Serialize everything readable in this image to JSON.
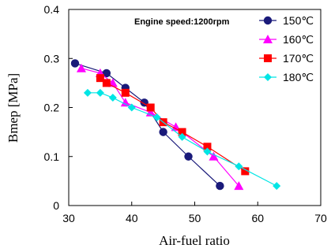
{
  "chart_data": {
    "type": "line",
    "annotation": "Engine speed:1200rpm",
    "xlabel": "Air-fuel ratio",
    "ylabel": "Bmep [MPa]",
    "xlim": [
      30,
      70
    ],
    "ylim": [
      0,
      0.4
    ],
    "x_ticks": [
      "30",
      "40",
      "50",
      "60",
      "70"
    ],
    "y_ticks": [
      "0",
      "0.1",
      "0.2",
      "0.3",
      "0.4"
    ],
    "legend_position": "top-right",
    "grid": false,
    "series": [
      {
        "name": "150℃",
        "color": "#1a1a7a",
        "marker": "circle",
        "points": [
          [
            31,
            0.29
          ],
          [
            36,
            0.27
          ],
          [
            39,
            0.24
          ],
          [
            42,
            0.21
          ],
          [
            45,
            0.15
          ],
          [
            49,
            0.1
          ],
          [
            54,
            0.04
          ]
        ]
      },
      {
        "name": "160℃",
        "color": "#ff00ff",
        "marker": "triangle",
        "points": [
          [
            32,
            0.28
          ],
          [
            35,
            0.27
          ],
          [
            37,
            0.25
          ],
          [
            39,
            0.21
          ],
          [
            43,
            0.19
          ],
          [
            47,
            0.16
          ],
          [
            53,
            0.1
          ],
          [
            57,
            0.04
          ]
        ]
      },
      {
        "name": "170℃",
        "color": "#ff0000",
        "marker": "square",
        "points": [
          [
            35,
            0.26
          ],
          [
            36,
            0.25
          ],
          [
            39,
            0.23
          ],
          [
            43,
            0.2
          ],
          [
            45,
            0.17
          ],
          [
            48,
            0.15
          ],
          [
            52,
            0.12
          ],
          [
            58,
            0.07
          ]
        ]
      },
      {
        "name": "180℃",
        "color": "#00e5e5",
        "marker": "diamond",
        "points": [
          [
            33,
            0.23
          ],
          [
            35,
            0.23
          ],
          [
            37,
            0.22
          ],
          [
            40,
            0.2
          ],
          [
            44,
            0.18
          ],
          [
            48,
            0.14
          ],
          [
            52,
            0.11
          ],
          [
            57,
            0.08
          ],
          [
            63,
            0.04
          ]
        ]
      }
    ]
  }
}
